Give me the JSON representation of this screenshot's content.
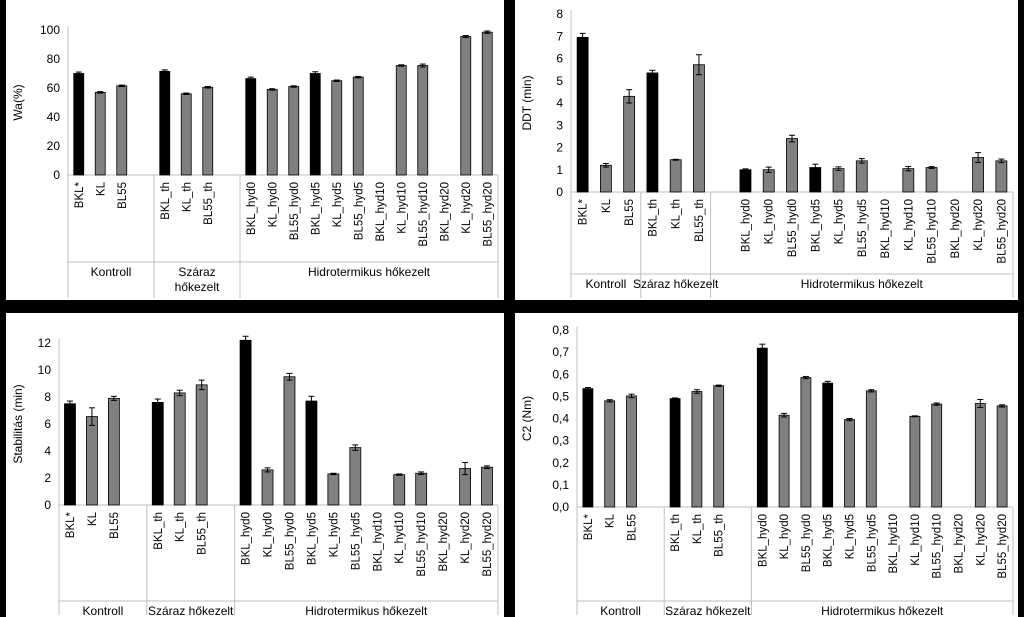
{
  "colors": {
    "black_bar": "#000000",
    "gray_bar": "#808080",
    "axis": "#bfbfbf",
    "divider": "#bfbfbf"
  },
  "chart_data": [
    {
      "type": "bar",
      "ylabel": "Wa(%)",
      "ylim": [
        0,
        100
      ],
      "yticks": [
        "0",
        "20",
        "40",
        "60",
        "80",
        "100"
      ],
      "yticks_values": [
        0,
        20,
        40,
        60,
        80,
        100
      ],
      "categories": [
        "BKL*",
        "KL",
        "BL55",
        "",
        "BKL_th",
        "KL_th",
        "BL55_th",
        "",
        "BKL_hyd0",
        "KL_hyd0",
        "BL55_hyd0",
        "BKL_hyd5",
        "KL_hyd5",
        "BL55_hyd5",
        "BKL_hyd10",
        "KL_hyd10",
        "BL55_hyd10",
        "BKL_hyd20",
        "KL_hyd20",
        "BL55_hyd20"
      ],
      "values": [
        70,
        57,
        61.5,
        null,
        71.5,
        56,
        60.5,
        null,
        66.5,
        59,
        61,
        70,
        65,
        67.5,
        null,
        75.5,
        75.5,
        null,
        95.5,
        98.5
      ],
      "errors": [
        1,
        0.5,
        0.5,
        null,
        1,
        0.5,
        0.5,
        null,
        1,
        0.5,
        0.5,
        1.2,
        0.5,
        0.5,
        null,
        0.5,
        1,
        null,
        0.7,
        0.8
      ],
      "highlight": [
        0,
        4,
        8,
        11
      ],
      "groups": [
        {
          "label": "Kontroll",
          "start": 0,
          "end": 3
        },
        {
          "label": "Száraz\nhőkezelt",
          "start": 4,
          "end": 7
        },
        {
          "label": "Hidrotermikus hőkezelt",
          "start": 8,
          "end": 19
        }
      ]
    },
    {
      "type": "bar",
      "ylabel": "DDT (min)",
      "ylim": [
        0,
        8
      ],
      "yticks": [
        "0",
        "1",
        "2",
        "3",
        "4",
        "5",
        "6",
        "7",
        "8"
      ],
      "yticks_values": [
        0,
        1,
        2,
        3,
        4,
        5,
        6,
        7,
        8
      ],
      "categories": [
        "BKL*",
        "KL",
        "BL55",
        "BKL_th",
        "KL_th",
        "BL55_th",
        "",
        "BKL_hyd0",
        "KL_hyd0",
        "BL55_hyd0",
        "BKL_hyd5",
        "KL_hyd5",
        "BL55_hyd5",
        "BKL_hyd10",
        "KL_hyd10",
        "BL55_hyd10",
        "BKL_hyd20",
        "KL_hyd20",
        "BL55_hyd20"
      ],
      "values": [
        6.95,
        1.2,
        4.3,
        5.35,
        1.45,
        5.72,
        null,
        1.0,
        1.0,
        2.4,
        1.1,
        1.05,
        1.4,
        null,
        1.05,
        1.1,
        null,
        1.55,
        1.4
      ],
      "errors": [
        0.18,
        0.08,
        0.3,
        0.12,
        0.02,
        0.45,
        null,
        0.04,
        0.12,
        0.15,
        0.15,
        0.08,
        0.1,
        null,
        0.1,
        0.04,
        null,
        0.22,
        0.08
      ],
      "highlight": [
        0,
        3,
        7,
        10
      ],
      "groups": [
        {
          "label": "Kontroll",
          "start": 0,
          "end": 2
        },
        {
          "label": "Száraz hőkezelt",
          "start": 3,
          "end": 5
        },
        {
          "label": "Hidrotermikus hőkezelt",
          "start": 6,
          "end": 18
        }
      ]
    },
    {
      "type": "bar",
      "ylabel": "Stabilitás (min)",
      "ylim": [
        0,
        12
      ],
      "yticks": [
        "0",
        "2",
        "4",
        "6",
        "8",
        "10",
        "12"
      ],
      "yticks_values": [
        0,
        2,
        4,
        6,
        8,
        10,
        12
      ],
      "categories": [
        "BKL*",
        "KL",
        "BL55",
        "",
        "BKL_th",
        "KL_th",
        "BL55_th",
        "",
        "BKL_hyd0",
        "KL_hyd0",
        "BL55_hyd0",
        "BKL_hyd5",
        "KL_hyd5",
        "BL55_hyd5",
        "BKL_hyd10",
        "KL_hyd10",
        "BL55_hyd10",
        "BKL_hyd20",
        "KL_hyd20",
        "BL55_hyd20"
      ],
      "values": [
        7.5,
        6.55,
        7.9,
        null,
        7.6,
        8.3,
        8.9,
        null,
        12.2,
        2.6,
        9.5,
        7.7,
        2.3,
        4.25,
        null,
        2.25,
        2.35,
        null,
        2.7,
        2.8
      ],
      "errors": [
        0.2,
        0.65,
        0.15,
        null,
        0.25,
        0.2,
        0.35,
        null,
        0.3,
        0.15,
        0.25,
        0.35,
        0.05,
        0.2,
        null,
        0.05,
        0.1,
        null,
        0.45,
        0.1
      ],
      "highlight": [
        0,
        4,
        8,
        11
      ],
      "groups": [
        {
          "label": "Kontroll",
          "start": 0,
          "end": 3
        },
        {
          "label": "Száraz hőkezelt",
          "start": 4,
          "end": 7
        },
        {
          "label": "Hidrotermikus hőkezelt",
          "start": 8,
          "end": 19
        }
      ]
    },
    {
      "type": "bar",
      "ylabel": "C2 (Nm)",
      "ylim": [
        0,
        0.8
      ],
      "yticks": [
        "0,0",
        "0,1",
        "0,2",
        "0,3",
        "0,4",
        "0,5",
        "0,6",
        "0,7",
        "0,8"
      ],
      "yticks_values": [
        0,
        0.1,
        0.2,
        0.3,
        0.4,
        0.5,
        0.6,
        0.7,
        0.8
      ],
      "categories": [
        "BKL*",
        "KL",
        "BL55",
        "",
        "BKL_th",
        "KL_th",
        "BL55_th",
        "",
        "BKL_hyd0",
        "KL_hyd0",
        "BL55_hyd0",
        "BKL_hyd5",
        "KL_hyd5",
        "BL55_hyd5",
        "BKL_hyd10",
        "KL_hyd10",
        "BL55_hyd10",
        "BKL_hyd20",
        "KL_hyd20",
        "BL55_hyd20"
      ],
      "values": [
        0.535,
        0.48,
        0.502,
        null,
        0.49,
        0.522,
        0.548,
        null,
        0.718,
        0.415,
        0.585,
        0.56,
        0.395,
        0.525,
        null,
        0.41,
        0.465,
        null,
        0.468,
        0.457
      ],
      "errors": [
        0.005,
        0.005,
        0.008,
        null,
        0.003,
        0.008,
        0.003,
        null,
        0.018,
        0.008,
        0.005,
        0.008,
        0.005,
        0.005,
        null,
        0.002,
        0.005,
        null,
        0.018,
        0.005
      ],
      "highlight": [
        0,
        4,
        8,
        11
      ],
      "groups": [
        {
          "label": "Kontroll",
          "start": 0,
          "end": 3
        },
        {
          "label": "Száraz hőkezelt",
          "start": 4,
          "end": 7
        },
        {
          "label": "Hidrotermikus hőkezelt",
          "start": 8,
          "end": 19
        }
      ]
    }
  ]
}
